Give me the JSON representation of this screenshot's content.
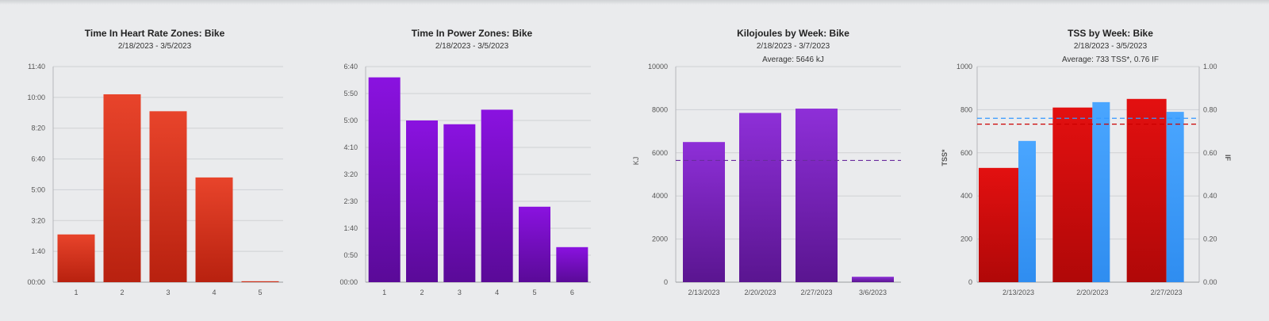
{
  "colors": {
    "hr_red_top": "#e8442b",
    "hr_red_bottom": "#b8210f",
    "purple_top": "#8a12e0",
    "purple_bottom": "#5a0a98",
    "kj_top": "#8e2fd8",
    "kj_bottom": "#5a1590",
    "tss_red": "#d20c0c",
    "if_blue": "#3399ff",
    "axis_red": "#cc0000",
    "axis_blue": "#3399ff"
  },
  "chart_data": [
    {
      "id": "hr",
      "type": "bar",
      "title": "Time In Heart Rate Zones: Bike",
      "subtitle": "2/18/2023 - 3/5/2023",
      "categories": [
        "1",
        "2",
        "3",
        "4",
        "5"
      ],
      "values": [
        155,
        610,
        555,
        340,
        3
      ],
      "value_unit": "minutes",
      "ylim": [
        0,
        700
      ],
      "y_ticks": [
        0,
        100,
        200,
        300,
        400,
        500,
        600,
        700
      ],
      "y_tick_labels": [
        "00:00",
        "1:40",
        "3:20",
        "5:00",
        "6:40",
        "8:20",
        "10:00",
        "11:40"
      ],
      "xlabel": "",
      "ylabel": ""
    },
    {
      "id": "power",
      "type": "bar",
      "title": "Time In Power Zones: Bike",
      "subtitle": "2/18/2023 - 3/5/2023",
      "categories": [
        "1",
        "2",
        "3",
        "4",
        "5",
        "6"
      ],
      "values": [
        380,
        300,
        293,
        320,
        140,
        65
      ],
      "value_unit": "minutes",
      "ylim": [
        0,
        400
      ],
      "y_ticks": [
        0,
        50,
        100,
        150,
        200,
        250,
        300,
        350,
        400
      ],
      "y_tick_labels": [
        "00:00",
        "0:50",
        "1:40",
        "2:30",
        "3:20",
        "4:10",
        "5:00",
        "5:50",
        "6:40"
      ],
      "xlabel": "",
      "ylabel": ""
    },
    {
      "id": "kj",
      "type": "bar",
      "title": "Kilojoules by Week: Bike",
      "subtitle": "2/18/2023 - 3/7/2023",
      "average_label": "Average: 5646 kJ",
      "average": 5646,
      "categories": [
        "2/13/2023",
        "2/20/2023",
        "2/27/2023",
        "3/6/2023"
      ],
      "values": [
        6500,
        7850,
        8050,
        250
      ],
      "ylim": [
        0,
        10000
      ],
      "y_ticks": [
        0,
        2000,
        4000,
        6000,
        8000,
        10000
      ],
      "y_tick_labels": [
        "0",
        "2000",
        "4000",
        "6000",
        "8000",
        "10000"
      ],
      "xlabel": "",
      "ylabel": "KJ"
    },
    {
      "id": "tss",
      "type": "bar",
      "title": "TSS by Week: Bike",
      "subtitle": "2/18/2023 - 3/5/2023",
      "average_label": "Average: 733 TSS*, 0.76 IF",
      "categories": [
        "2/13/2023",
        "2/20/2023",
        "2/27/2023"
      ],
      "series": [
        {
          "name": "TSS*",
          "axis": "left",
          "values": [
            530,
            810,
            850
          ],
          "average": 733
        },
        {
          "name": "IF",
          "axis": "right",
          "values": [
            0.655,
            0.835,
            0.79
          ],
          "average": 0.76
        }
      ],
      "ylim": [
        0,
        1000
      ],
      "y2lim": [
        0,
        1.0
      ],
      "y_ticks": [
        0,
        200,
        400,
        600,
        800,
        1000
      ],
      "y_tick_labels": [
        "0",
        "200",
        "400",
        "600",
        "800",
        "1000"
      ],
      "y2_ticks": [
        0,
        0.2,
        0.4,
        0.6,
        0.8,
        1.0
      ],
      "y2_tick_labels": [
        "0.00",
        "0.20",
        "0.40",
        "0.60",
        "0.80",
        "1.00"
      ],
      "xlabel": "",
      "ylabel": "TSS*",
      "y2label": "IF"
    }
  ]
}
